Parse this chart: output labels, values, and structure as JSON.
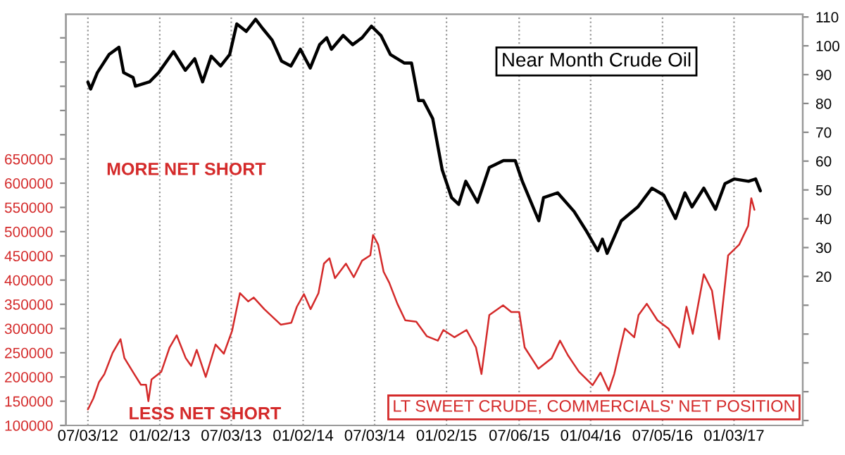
{
  "chart_data": {
    "type": "line",
    "xlim": [
      "2012-05-08",
      "2017-06-27"
    ],
    "xticks": [
      {
        "value": "2012-07-03",
        "label": "07/03/12"
      },
      {
        "value": "2013-01-02",
        "label": "01/02/13"
      },
      {
        "value": "2013-07-03",
        "label": "07/03/13"
      },
      {
        "value": "2014-01-02",
        "label": "01/02/14"
      },
      {
        "value": "2014-07-03",
        "label": "07/03/14"
      },
      {
        "value": "2015-01-02",
        "label": "01/02/15"
      },
      {
        "value": "2015-07-06",
        "label": "07/06/15"
      },
      {
        "value": "2016-01-04",
        "label": "01/04/16"
      },
      {
        "value": "2016-07-05",
        "label": "07/05/16"
      },
      {
        "value": "2017-01-03",
        "label": "01/03/17"
      }
    ],
    "ylim": [
      100000,
      949000
    ],
    "yticks": [
      100000,
      150000,
      200000,
      250000,
      300000,
      350000,
      400000,
      450000,
      500000,
      550000,
      600000,
      650000,
      {
        "value": 700000,
        "label": null
      },
      {
        "value": 750000,
        "label": null
      },
      {
        "value": 800000,
        "label": null
      },
      {
        "value": 850000,
        "label": null
      },
      {
        "value": 900000,
        "label": null
      }
    ],
    "y2lim": [
      -31.7,
      111
    ],
    "y2ticks": [
      {
        "value": -30,
        "label": null
      },
      {
        "value": -20,
        "label": null
      },
      {
        "value": -10,
        "label": null
      },
      {
        "value": 0,
        "label": null
      },
      {
        "value": 10,
        "label": null
      },
      20,
      30,
      40,
      50,
      60,
      70,
      80,
      90,
      100,
      110
    ],
    "grid": "x",
    "legend": false,
    "annotations": [
      "MORE NET SHORT",
      "LESS NET SHORT"
    ],
    "series": [
      {
        "name": "Near Month Crude Oil",
        "color": "#000000",
        "axis": "y2",
        "x": [
          "2012-07-03",
          "2012-07-10",
          "2012-07-27",
          "2012-08-26",
          "2012-09-20",
          "2012-10-02",
          "2012-10-26",
          "2012-11-01",
          "2012-12-07",
          "2012-12-30",
          "2013-02-06",
          "2013-03-08",
          "2013-04-01",
          "2013-04-21",
          "2013-05-13",
          "2013-06-06",
          "2013-06-29",
          "2013-07-17",
          "2013-08-10",
          "2013-09-03",
          "2013-09-21",
          "2013-10-15",
          "2013-11-08",
          "2013-12-02",
          "2013-12-26",
          "2014-01-20",
          "2014-02-13",
          "2014-03-03",
          "2014-03-15",
          "2014-04-14",
          "2014-05-08",
          "2014-06-01",
          "2014-06-25",
          "2014-07-19",
          "2014-08-12",
          "2014-09-17",
          "2014-10-05",
          "2014-10-23",
          "2014-11-04",
          "2014-11-28",
          "2014-12-22",
          "2015-01-15",
          "2015-02-02",
          "2015-02-20",
          "2015-03-22",
          "2015-04-21",
          "2015-05-27",
          "2015-06-26",
          "2015-07-14",
          "2015-08-25",
          "2015-09-06",
          "2015-10-12",
          "2015-11-23",
          "2015-12-23",
          "2016-01-22",
          "2016-02-03",
          "2016-02-15",
          "2016-03-22",
          "2016-05-03",
          "2016-06-08",
          "2016-07-08",
          "2016-08-07",
          "2016-08-31",
          "2016-09-18",
          "2016-10-18",
          "2016-11-17",
          "2016-12-11",
          "2017-01-04",
          "2017-02-09",
          "2017-02-27",
          "2017-03-11"
        ],
        "values": [
          87.4,
          85,
          90.7,
          97,
          99.5,
          90.7,
          89,
          86,
          87.5,
          90.7,
          98,
          91.5,
          95.5,
          87.5,
          96.4,
          93,
          97,
          107.6,
          105,
          109.2,
          106,
          102,
          94.7,
          93,
          98.8,
          92.3,
          100.4,
          102.8,
          98.8,
          103.6,
          100.4,
          102.8,
          106.8,
          103.6,
          97,
          94,
          94,
          81,
          81,
          74.7,
          57,
          47.3,
          45,
          53,
          45.7,
          57.8,
          60.2,
          60.2,
          53,
          39.3,
          47.3,
          49,
          42.5,
          36,
          28.9,
          32.9,
          28,
          39.3,
          44.1,
          50.6,
          48.2,
          40.1,
          49,
          44.1,
          50.6,
          43.3,
          52.2,
          53.8,
          53,
          53.8,
          49.7
        ]
      },
      {
        "name": "LT SWEET CRUDE, COMMERCIALS' NET POSITION",
        "color": "#d42a2a",
        "x": [
          "2012-07-03",
          "2012-07-17",
          "2012-07-31",
          "2012-08-14",
          "2012-09-04",
          "2012-09-24",
          "2012-10-04",
          "2012-10-29",
          "2012-11-15",
          "2012-11-28",
          "2012-12-04",
          "2012-12-12",
          "2013-01-06",
          "2013-01-27",
          "2013-02-14",
          "2013-03-09",
          "2013-03-23",
          "2013-04-06",
          "2013-04-29",
          "2013-05-24",
          "2013-06-14",
          "2013-07-05",
          "2013-07-25",
          "2013-08-15",
          "2013-08-29",
          "2013-09-25",
          "2013-11-06",
          "2013-12-03",
          "2013-12-17",
          "2014-01-04",
          "2014-01-21",
          "2014-02-10",
          "2014-02-24",
          "2014-03-10",
          "2014-03-24",
          "2014-04-21",
          "2014-05-11",
          "2014-06-01",
          "2014-06-22",
          "2014-06-29",
          "2014-07-12",
          "2014-07-26",
          "2014-08-09",
          "2014-08-30",
          "2014-09-19",
          "2014-10-17",
          "2014-11-13",
          "2014-12-11",
          "2014-12-25",
          "2015-01-22",
          "2015-02-22",
          "2015-03-18",
          "2015-04-01",
          "2015-04-21",
          "2015-05-26",
          "2015-06-16",
          "2015-07-06",
          "2015-07-20",
          "2015-08-24",
          "2015-09-27",
          "2015-10-18",
          "2015-11-07",
          "2015-12-05",
          "2016-01-09",
          "2016-01-29",
          "2016-02-19",
          "2016-03-04",
          "2016-03-31",
          "2016-04-24",
          "2016-05-05",
          "2016-05-26",
          "2016-06-22",
          "2016-07-20",
          "2016-08-17",
          "2016-09-04",
          "2016-09-20",
          "2016-10-18",
          "2016-11-08",
          "2016-11-26",
          "2016-12-19",
          "2017-01-16",
          "2017-02-08",
          "2017-02-16",
          "2017-02-24"
        ],
        "values": [
          133000,
          156000,
          189000,
          206000,
          250000,
          278000,
          239000,
          206000,
          184000,
          184000,
          150000,
          195000,
          211000,
          261000,
          286000,
          239000,
          223000,
          256000,
          200000,
          267000,
          248000,
          295000,
          373000,
          356000,
          364000,
          340000,
          308000,
          312000,
          345000,
          371000,
          340000,
          373000,
          434000,
          445000,
          404000,
          434000,
          406000,
          440000,
          451000,
          493000,
          473000,
          417000,
          395000,
          351000,
          317000,
          314000,
          284000,
          275000,
          297000,
          282000,
          297000,
          261000,
          206000,
          328000,
          348000,
          334000,
          334000,
          261000,
          217000,
          239000,
          275000,
          245000,
          211000,
          183000,
          209000,
          172000,
          206000,
          300000,
          282000,
          328000,
          351000,
          317000,
          300000,
          261000,
          345000,
          289000,
          412000,
          378000,
          278000,
          451000,
          473000,
          512000,
          569000,
          545000
        ]
      }
    ]
  }
}
